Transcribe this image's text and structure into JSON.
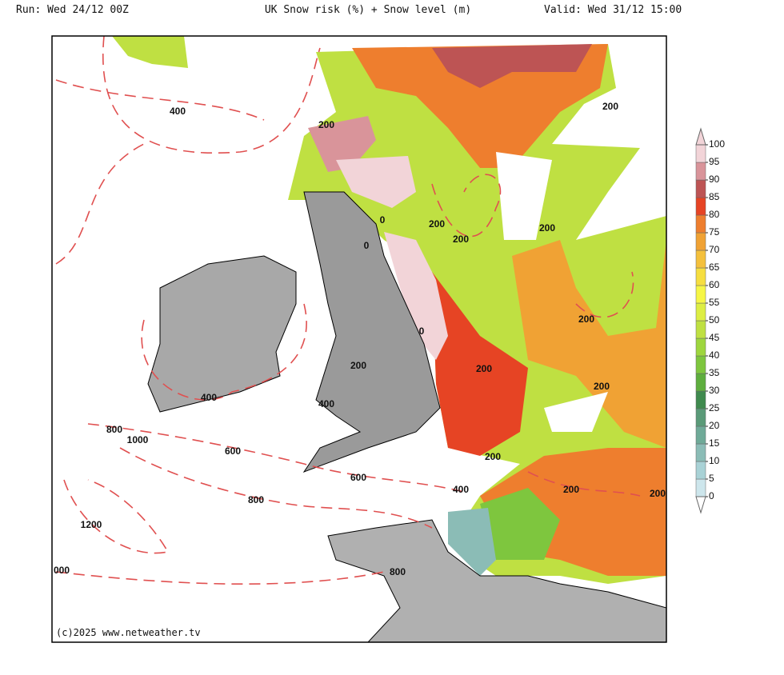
{
  "header": {
    "run": "Run: Wed 24/12 00Z",
    "title": "UK Snow risk (%) + Snow level (m)",
    "valid": "Valid: Wed 31/12 15:00"
  },
  "map": {
    "contour_labels": [
      "400",
      "200",
      "200",
      "0",
      "0",
      "200",
      "200",
      "200",
      "0",
      "200",
      "200",
      "200",
      "200",
      "400",
      "400",
      "800",
      "1000",
      "600",
      "200",
      "600",
      "400",
      "200",
      "200",
      "800",
      "1200",
      "000",
      "800"
    ],
    "credit": "(c)2025 www.netweather.tv"
  },
  "colorbar": {
    "ticks": [
      0,
      5,
      10,
      15,
      20,
      25,
      30,
      35,
      40,
      45,
      50,
      55,
      60,
      65,
      70,
      75,
      80,
      85,
      90,
      95,
      100
    ],
    "colors": [
      "#cde6ec",
      "#a9d2d6",
      "#8bbcb6",
      "#6faa98",
      "#5a9a78",
      "#3f8a4e",
      "#5eae3e",
      "#7ec63e",
      "#9ed63e",
      "#bfe042",
      "#ddee44",
      "#f6f646",
      "#f6de40",
      "#f4c03c",
      "#f0a234",
      "#ee7e2e",
      "#e64424",
      "#bd5454",
      "#d9949a",
      "#f2d4d8"
    ]
  }
}
